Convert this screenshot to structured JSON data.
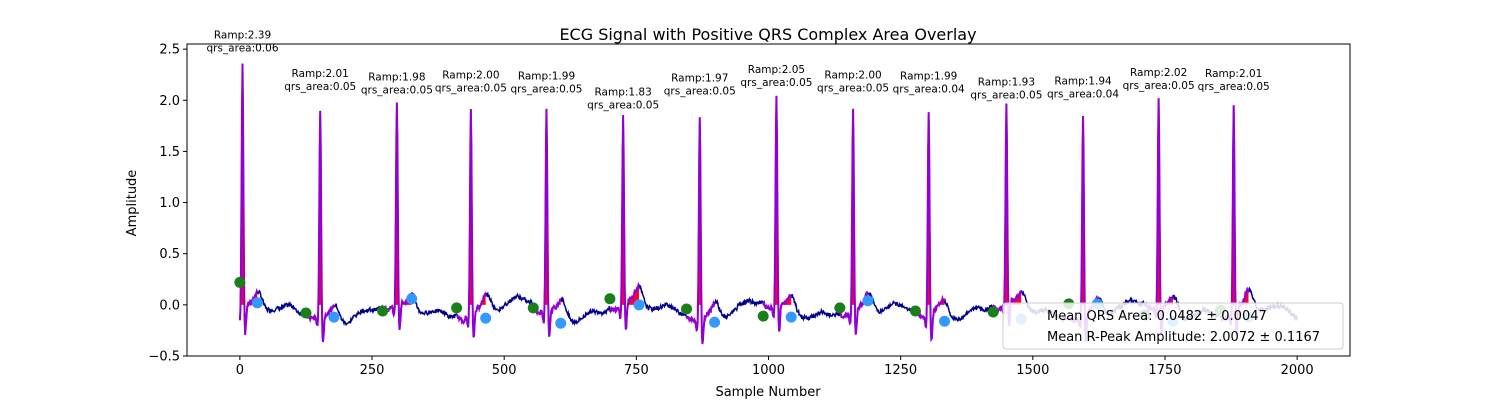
{
  "chart_data": {
    "type": "line",
    "title": "ECG Signal with Positive QRS Complex Area Overlay",
    "xlabel": "Sample Number",
    "ylabel": "Amplitude",
    "xlim": [
      -100,
      2100
    ],
    "ylim": [
      -0.5,
      2.55
    ],
    "x_ticks": [
      0,
      250,
      500,
      750,
      1000,
      1250,
      1500,
      1750,
      2000
    ],
    "x_tick_labels": [
      "0",
      "250",
      "500",
      "750",
      "1000",
      "1250",
      "1500",
      "1750",
      "2000"
    ],
    "y_ticks": [
      -0.5,
      0.0,
      0.5,
      1.0,
      1.5,
      2.0,
      2.5
    ],
    "y_tick_labels": [
      "−0.5",
      "0.0",
      "0.5",
      "1.0",
      "1.5",
      "2.0",
      "2.5"
    ],
    "grid": false,
    "colors": {
      "signal": "#00008b",
      "qrs_segment": "#9400d3",
      "qrs_area": "#ff0033",
      "onset_marker": "#1a7f1a",
      "offset_marker": "#3399ff"
    },
    "beats": [
      {
        "r_peak_x": 5,
        "r_amp": 2.39,
        "label_ramp": "Ramp:2.39",
        "label_area": "qrs_area:0.06",
        "onset": [
          0,
          0.22
        ],
        "offset": [
          33,
          0.02
        ]
      },
      {
        "r_peak_x": 152,
        "r_amp": 2.01,
        "label_ramp": "Ramp:2.01",
        "label_area": "qrs_area:0.05",
        "onset": [
          125,
          -0.08
        ],
        "offset": [
          178,
          -0.12
        ]
      },
      {
        "r_peak_x": 297,
        "r_amp": 1.98,
        "label_ramp": "Ramp:1.98",
        "label_area": "qrs_area:0.05",
        "onset": [
          270,
          -0.06
        ],
        "offset": [
          325,
          0.06
        ]
      },
      {
        "r_peak_x": 437,
        "r_amp": 2.0,
        "label_ramp": "Ramp:2.00",
        "label_area": "qrs_area:0.05",
        "onset": [
          410,
          -0.03
        ],
        "offset": [
          465,
          -0.13
        ]
      },
      {
        "r_peak_x": 580,
        "r_amp": 1.99,
        "label_ramp": "Ramp:1.99",
        "label_area": "qrs_area:0.05",
        "onset": [
          555,
          -0.03
        ],
        "offset": [
          607,
          -0.18
        ]
      },
      {
        "r_peak_x": 725,
        "r_amp": 1.83,
        "label_ramp": "Ramp:1.83",
        "label_area": "qrs_area:0.05",
        "onset": [
          700,
          0.06
        ],
        "offset": [
          755,
          0.0
        ]
      },
      {
        "r_peak_x": 870,
        "r_amp": 1.97,
        "label_ramp": "Ramp:1.97",
        "label_area": "qrs_area:0.05",
        "onset": [
          845,
          -0.04
        ],
        "offset": [
          898,
          -0.17
        ]
      },
      {
        "r_peak_x": 1015,
        "r_amp": 2.05,
        "label_ramp": "Ramp:2.05",
        "label_area": "qrs_area:0.05",
        "onset": [
          990,
          -0.11
        ],
        "offset": [
          1043,
          -0.12
        ]
      },
      {
        "r_peak_x": 1160,
        "r_amp": 2.0,
        "label_ramp": "Ramp:2.00",
        "label_area": "qrs_area:0.05",
        "onset": [
          1135,
          -0.03
        ],
        "offset": [
          1188,
          0.04
        ]
      },
      {
        "r_peak_x": 1303,
        "r_amp": 1.99,
        "label_ramp": "Ramp:1.99",
        "label_area": "qrs_area:0.04",
        "onset": [
          1278,
          -0.06
        ],
        "offset": [
          1333,
          -0.16
        ]
      },
      {
        "r_peak_x": 1450,
        "r_amp": 1.93,
        "label_ramp": "Ramp:1.93",
        "label_area": "qrs_area:0.05",
        "onset": [
          1425,
          -0.07
        ],
        "offset": [
          1478,
          -0.14
        ]
      },
      {
        "r_peak_x": 1595,
        "r_amp": 1.94,
        "label_ramp": "Ramp:1.94",
        "label_area": "qrs_area:0.04",
        "onset": [
          1568,
          0.01
        ],
        "offset": [
          1622,
          0.01
        ]
      },
      {
        "r_peak_x": 1738,
        "r_amp": 2.02,
        "label_ramp": "Ramp:2.02",
        "label_area": "qrs_area:0.05",
        "onset": [
          1712,
          -0.1
        ],
        "offset": [
          1765,
          -0.16
        ]
      },
      {
        "r_peak_x": 1880,
        "r_amp": 2.01,
        "label_ramp": "Ramp:2.01",
        "label_area": "qrs_area:0.05",
        "onset": [
          1855,
          -0.05
        ],
        "offset": [
          1908,
          -0.12
        ]
      }
    ],
    "legend": {
      "placement": "lower-right",
      "entries": [
        "Mean QRS Area: 0.0482 ± 0.0047",
        "Mean R-Peak Amplitude: 2.0072 ± 0.1167"
      ]
    }
  }
}
